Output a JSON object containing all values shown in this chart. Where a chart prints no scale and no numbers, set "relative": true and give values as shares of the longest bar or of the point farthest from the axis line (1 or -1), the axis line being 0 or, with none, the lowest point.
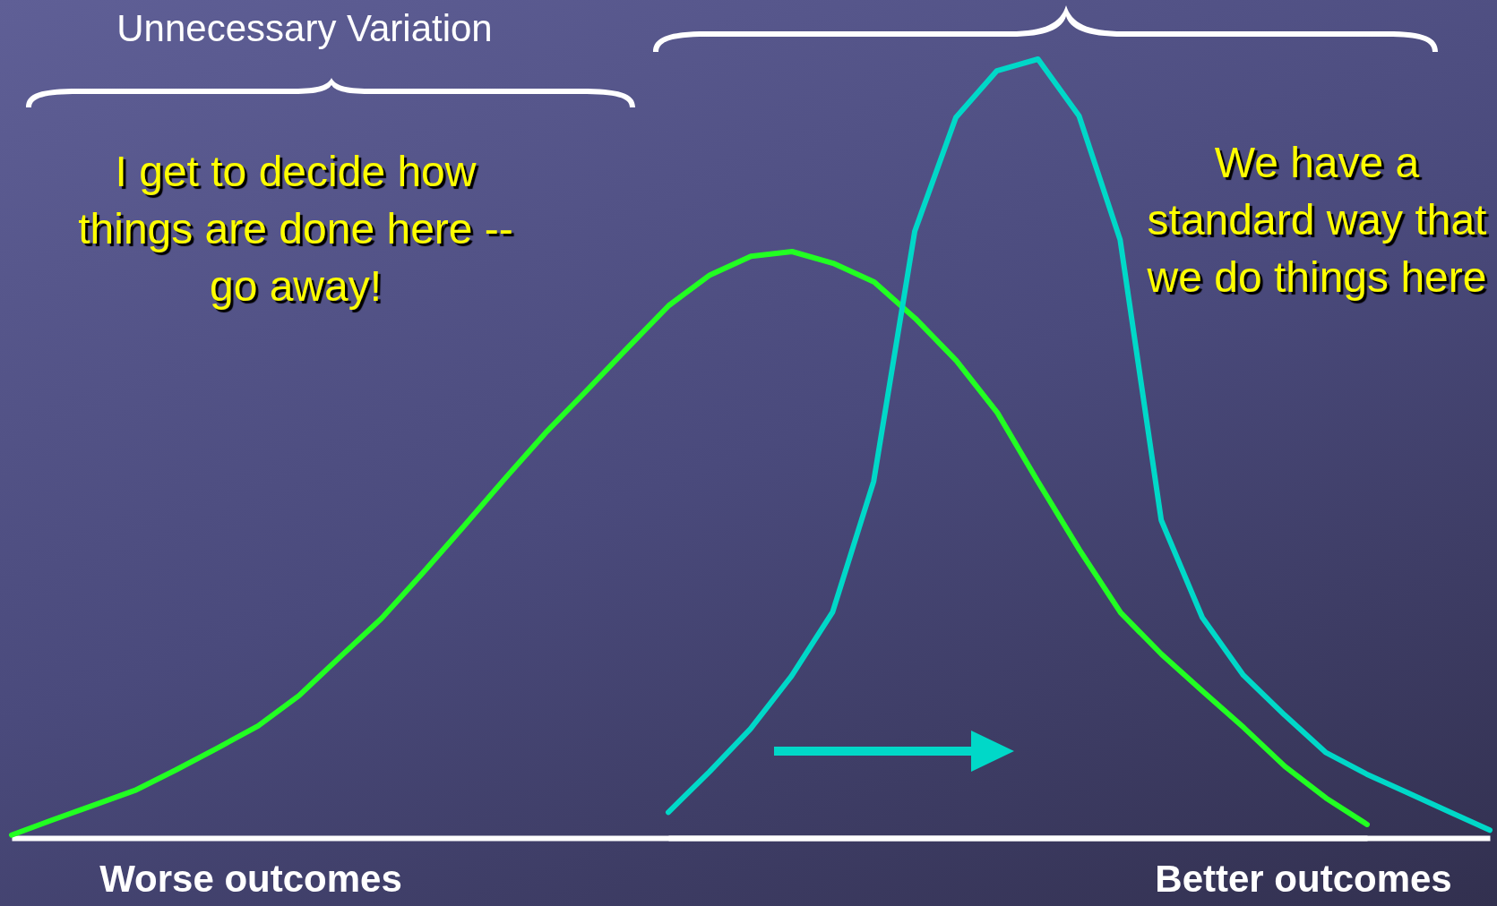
{
  "chart_data": [
    {
      "type": "line",
      "relative": true,
      "categories": [
        null,
        null,
        null,
        null,
        null,
        null,
        null,
        null,
        null,
        null,
        null,
        null,
        null,
        null,
        null,
        null,
        null,
        null,
        null,
        null,
        null,
        null,
        null,
        null,
        null,
        null,
        null,
        null,
        null,
        null,
        null,
        null,
        null,
        null
      ],
      "series": [
        {
          "color": "#22ff22",
          "values": [
            0.005,
            0.031,
            0.056,
            0.081,
            0.116,
            0.153,
            0.191,
            0.243,
            0.309,
            0.374,
            0.451,
            0.531,
            0.612,
            0.691,
            0.763,
            0.836,
            0.908,
            0.96,
            0.992,
            1,
            0.98,
            0.948,
            0.886,
            0.814,
            0.725,
            0.606,
            0.491,
            0.384,
            0.313,
            0.25,
            0.188,
            0.122,
            0.068,
            0.023
          ]
        }
      ],
      "annotations": [
        "Unnecessary Variation",
        "I get to decide how things are done here -- go away!",
        "We have a standard way that we do things here",
        "Worse outcomes",
        "Better outcomes"
      ],
      "grid": false,
      "line_style": "solid",
      "marker": "none"
    },
    {
      "type": "line",
      "relative": true,
      "categories": [
        null,
        null,
        null,
        null,
        null,
        null,
        null,
        null,
        null,
        null,
        null,
        null,
        null,
        null,
        null,
        null,
        null,
        null,
        null,
        null,
        null
      ],
      "series": [
        {
          "color": "#00d8c8",
          "values": [
            0.033,
            0.085,
            0.14,
            0.208,
            0.29,
            0.458,
            0.779,
            0.925,
            0.985,
            1,
            0.927,
            0.768,
            0.408,
            0.283,
            0.209,
            0.158,
            0.11,
            0.082,
            0.058,
            0.034,
            0.01
          ]
        }
      ],
      "grid": false,
      "line_style": "solid",
      "marker": "none"
    }
  ]
}
